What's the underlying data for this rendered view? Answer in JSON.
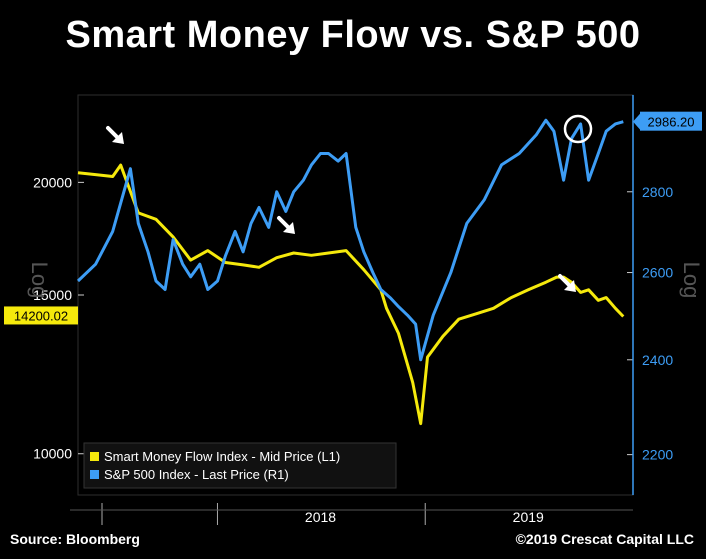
{
  "title": "Smart Money Flow vs. S&P 500",
  "source": "Source: Bloomberg",
  "copyright": "©2019 Crescat Capital LLC",
  "chart_data": {
    "type": "line",
    "x_axis": {
      "tick_labels": [
        "2018",
        "2019"
      ]
    },
    "y_left": {
      "label": "Log",
      "scale": "log",
      "lim": [
        9000,
        25000
      ],
      "ticks": [
        10000,
        15000,
        20000
      ],
      "tick_labels": [
        "10000",
        "15000",
        "20000"
      ],
      "last_value_label": "14200.02"
    },
    "y_right": {
      "label": "Log",
      "scale": "log",
      "lim": [
        2120,
        3060
      ],
      "ticks": [
        2200,
        2400,
        2600,
        2800
      ],
      "tick_labels": [
        "2200",
        "2400",
        "2600",
        "2800"
      ],
      "last_value_label": "2986.20"
    },
    "series": [
      {
        "name": "Smart Money Flow Index - Mid Price (L1)",
        "color": "#f5e90c",
        "axis": "left",
        "x": [
          "2017-05-01",
          "2017-06-01",
          "2017-07-01",
          "2017-07-15",
          "2017-08-15",
          "2017-09-15",
          "2017-10-15",
          "2017-11-15",
          "2017-12-15",
          "2018-01-15",
          "2018-02-15",
          "2018-03-15",
          "2018-04-15",
          "2018-05-15",
          "2018-06-15",
          "2018-07-15",
          "2018-08-15",
          "2018-09-15",
          "2018-10-15",
          "2018-10-25",
          "2018-11-15",
          "2018-12-10",
          "2018-12-24",
          "2019-01-05",
          "2019-02-01",
          "2019-03-01",
          "2019-04-01",
          "2019-05-01",
          "2019-06-01",
          "2019-07-01",
          "2019-08-01",
          "2019-08-20",
          "2019-09-01",
          "2019-09-15",
          "2019-10-01",
          "2019-10-15",
          "2019-11-01",
          "2019-11-15",
          "2019-12-01",
          "2019-12-15"
        ],
        "values": [
          20500,
          20400,
          20300,
          20900,
          18500,
          18200,
          17400,
          16400,
          16800,
          16300,
          16200,
          16100,
          16500,
          16700,
          16600,
          16700,
          16800,
          16000,
          15200,
          14500,
          13600,
          12000,
          10800,
          12800,
          13500,
          14100,
          14300,
          14500,
          14900,
          15200,
          15500,
          15700,
          15700,
          15500,
          15100,
          15200,
          14800,
          14900,
          14500,
          14200
        ]
      },
      {
        "name": "S&P 500 Index - Last Price (R1)",
        "color": "#3d9df5",
        "axis": "right",
        "x": [
          "2017-05-01",
          "2017-06-01",
          "2017-07-01",
          "2017-08-01",
          "2017-08-15",
          "2017-09-01",
          "2017-09-15",
          "2017-10-01",
          "2017-10-15",
          "2017-11-01",
          "2017-11-15",
          "2017-12-01",
          "2017-12-15",
          "2018-01-01",
          "2018-01-15",
          "2018-02-01",
          "2018-02-15",
          "2018-03-01",
          "2018-03-15",
          "2018-04-01",
          "2018-04-15",
          "2018-05-01",
          "2018-05-15",
          "2018-06-01",
          "2018-06-15",
          "2018-07-01",
          "2018-07-15",
          "2018-08-01",
          "2018-08-15",
          "2018-09-01",
          "2018-09-15",
          "2018-10-01",
          "2018-10-15",
          "2018-11-01",
          "2018-11-15",
          "2018-12-01",
          "2018-12-15",
          "2018-12-24",
          "2019-01-15",
          "2019-02-15",
          "2019-03-15",
          "2019-04-15",
          "2019-05-15",
          "2019-06-15",
          "2019-07-15",
          "2019-08-01",
          "2019-08-15",
          "2019-09-01",
          "2019-09-15",
          "2019-10-01",
          "2019-10-15",
          "2019-11-01",
          "2019-11-15",
          "2019-12-01",
          "2019-12-15"
        ],
        "values": [
          2580,
          2620,
          2700,
          2860,
          2720,
          2650,
          2580,
          2560,
          2680,
          2620,
          2590,
          2620,
          2560,
          2580,
          2640,
          2700,
          2650,
          2720,
          2760,
          2710,
          2800,
          2750,
          2800,
          2830,
          2870,
          2900,
          2900,
          2880,
          2900,
          2710,
          2650,
          2600,
          2560,
          2540,
          2520,
          2500,
          2480,
          2400,
          2500,
          2600,
          2720,
          2780,
          2870,
          2900,
          2950,
          2990,
          2960,
          2830,
          2940,
          2980,
          2830,
          2900,
          2960,
          2980,
          2986
        ]
      }
    ]
  }
}
